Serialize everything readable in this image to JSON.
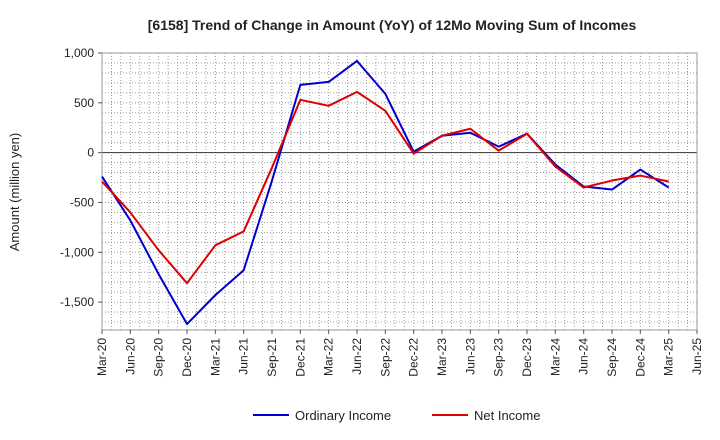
{
  "chart_data": {
    "type": "line",
    "title": "[6158]  Trend of Change in Amount (YoY) of 12Mo Moving Sum of Incomes",
    "xlabel": "",
    "ylabel": "Amount (million yen)",
    "ylim": [
      -1780,
      1000
    ],
    "yticks": [
      1000,
      500,
      0,
      -500,
      -1000,
      -1500
    ],
    "ytick_labels": [
      "1,000",
      "500",
      "0",
      "-500",
      "-1,000",
      "-1,500"
    ],
    "categories": [
      "Mar-20",
      "Jun-20",
      "Sep-20",
      "Dec-20",
      "Mar-21",
      "Jun-21",
      "Sep-21",
      "Dec-21",
      "Mar-22",
      "Jun-22",
      "Sep-22",
      "Dec-22",
      "Mar-23",
      "Jun-23",
      "Sep-23",
      "Dec-23",
      "Mar-24",
      "Jun-24",
      "Sep-24",
      "Dec-24",
      "Mar-25",
      "Jun-25"
    ],
    "grid": true,
    "legend_position": "bottom",
    "series": [
      {
        "name": "Ordinary Income",
        "color": "#0000cc",
        "values": [
          -240,
          -680,
          -1220,
          -1720,
          -1430,
          -1180,
          -280,
          680,
          710,
          920,
          590,
          10,
          170,
          200,
          60,
          190,
          -120,
          -340,
          -370,
          -170,
          -350,
          null
        ]
      },
      {
        "name": "Net Income",
        "color": "#dd0000",
        "values": [
          -290,
          -600,
          -980,
          -1310,
          -930,
          -790,
          -150,
          530,
          470,
          610,
          420,
          -10,
          170,
          240,
          20,
          190,
          -140,
          -350,
          -280,
          -230,
          -290,
          null
        ]
      }
    ]
  }
}
